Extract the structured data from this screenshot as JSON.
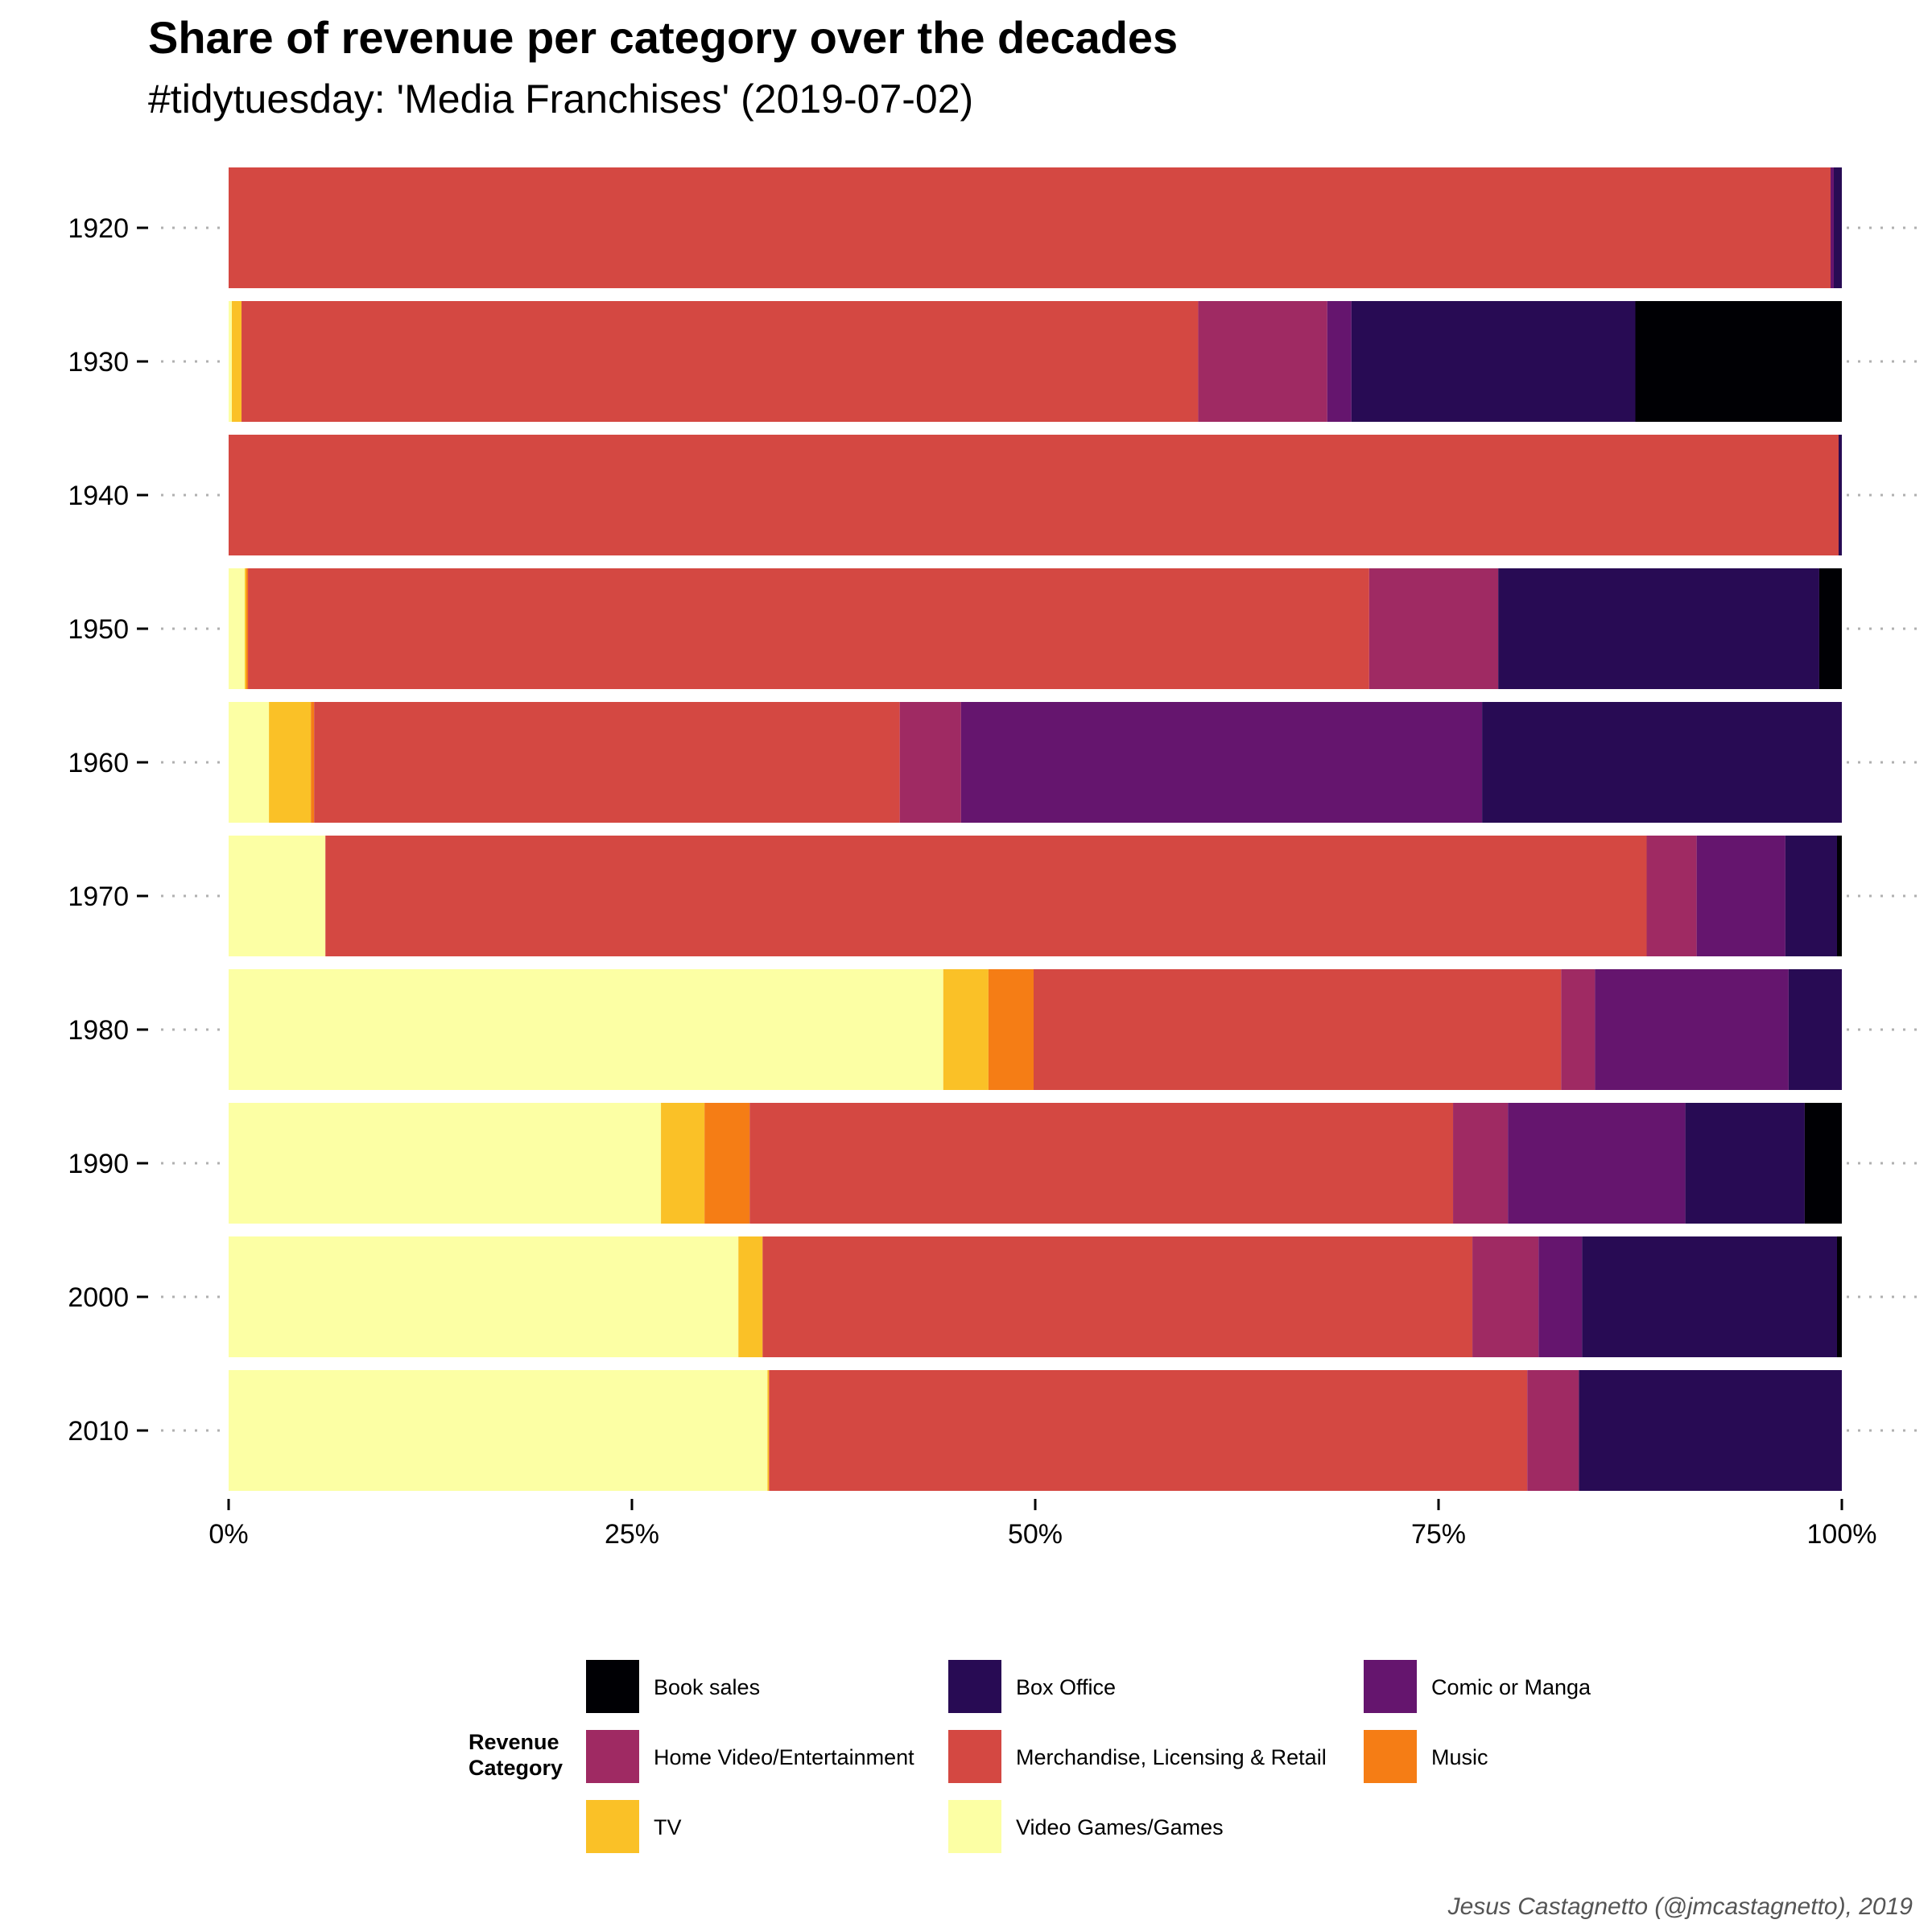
{
  "chart_data": {
    "type": "bar",
    "orientation": "horizontal",
    "stacked": true,
    "normalized": true,
    "title": "Share of revenue per category over the decades",
    "subtitle": "#tidytuesday: 'Media Franchises' (2019-07-02)",
    "caption": "Jesus Castagnetto (@jmcastagnetto), 2019",
    "categories": [
      "1920",
      "1930",
      "1940",
      "1950",
      "1960",
      "1970",
      "1980",
      "1990",
      "2000",
      "2010"
    ],
    "xlim": [
      0,
      1
    ],
    "x_ticks": [
      {
        "value": 0,
        "label": "0%"
      },
      {
        "value": 0.25,
        "label": "25%"
      },
      {
        "value": 0.5,
        "label": "50%"
      },
      {
        "value": 0.75,
        "label": "75%"
      },
      {
        "value": 1,
        "label": "100%"
      }
    ],
    "grid": false,
    "legend_title": "Revenue Category",
    "legend_position": "bottom",
    "stack_order": [
      "Video Games/Games",
      "TV",
      "Music",
      "Merchandise, Licensing & Retail",
      "Home Video/Entertainment",
      "Comic or Manga",
      "Box Office",
      "Book sales"
    ],
    "series": [
      {
        "name": "Book sales",
        "color": "#000004",
        "values": [
          0,
          0.128,
          0,
          0.014,
          0,
          0.003,
          0,
          0.023,
          0.003,
          0
        ]
      },
      {
        "name": "Box Office",
        "color": "#280b54",
        "values": [
          0.005,
          0.176,
          0.002,
          0.199,
          0.223,
          0.032,
          0.033,
          0.074,
          0.158,
          0.163
        ]
      },
      {
        "name": "Comic or Manga",
        "color": "#65156e",
        "values": [
          0.002,
          0.015,
          0,
          0,
          0.323,
          0.055,
          0.12,
          0.11,
          0.027,
          0
        ]
      },
      {
        "name": "Home Video/Entertainment",
        "color": "#9f2a63",
        "values": [
          0,
          0.08,
          0,
          0.08,
          0.038,
          0.031,
          0.021,
          0.034,
          0.041,
          0.032
        ]
      },
      {
        "name": "Merchandise, Licensing & Retail",
        "color": "#d44842",
        "values": [
          0.993,
          0.593,
          0.998,
          0.695,
          0.363,
          0.819,
          0.327,
          0.436,
          0.44,
          0.47
        ]
      },
      {
        "name": "Music",
        "color": "#f57d15",
        "values": [
          0,
          0,
          0,
          0.001,
          0.002,
          0,
          0.028,
          0.028,
          0,
          0
        ]
      },
      {
        "name": "TV",
        "color": "#fac127",
        "values": [
          0,
          0.006,
          0,
          0.001,
          0.026,
          0,
          0.028,
          0.027,
          0.015,
          0.001
        ]
      },
      {
        "name": "Video Games/Games",
        "color": "#fcffa4",
        "values": [
          0,
          0.002,
          0,
          0.01,
          0.025,
          0.06,
          0.443,
          0.268,
          0.316,
          0.334
        ]
      }
    ],
    "legend_layout": [
      [
        "Book sales",
        "Box Office",
        "Comic or Manga"
      ],
      [
        "Home Video/Entertainment",
        "Merchandise, Licensing & Retail",
        "Music"
      ],
      [
        "TV",
        "Video Games/Games"
      ]
    ]
  }
}
